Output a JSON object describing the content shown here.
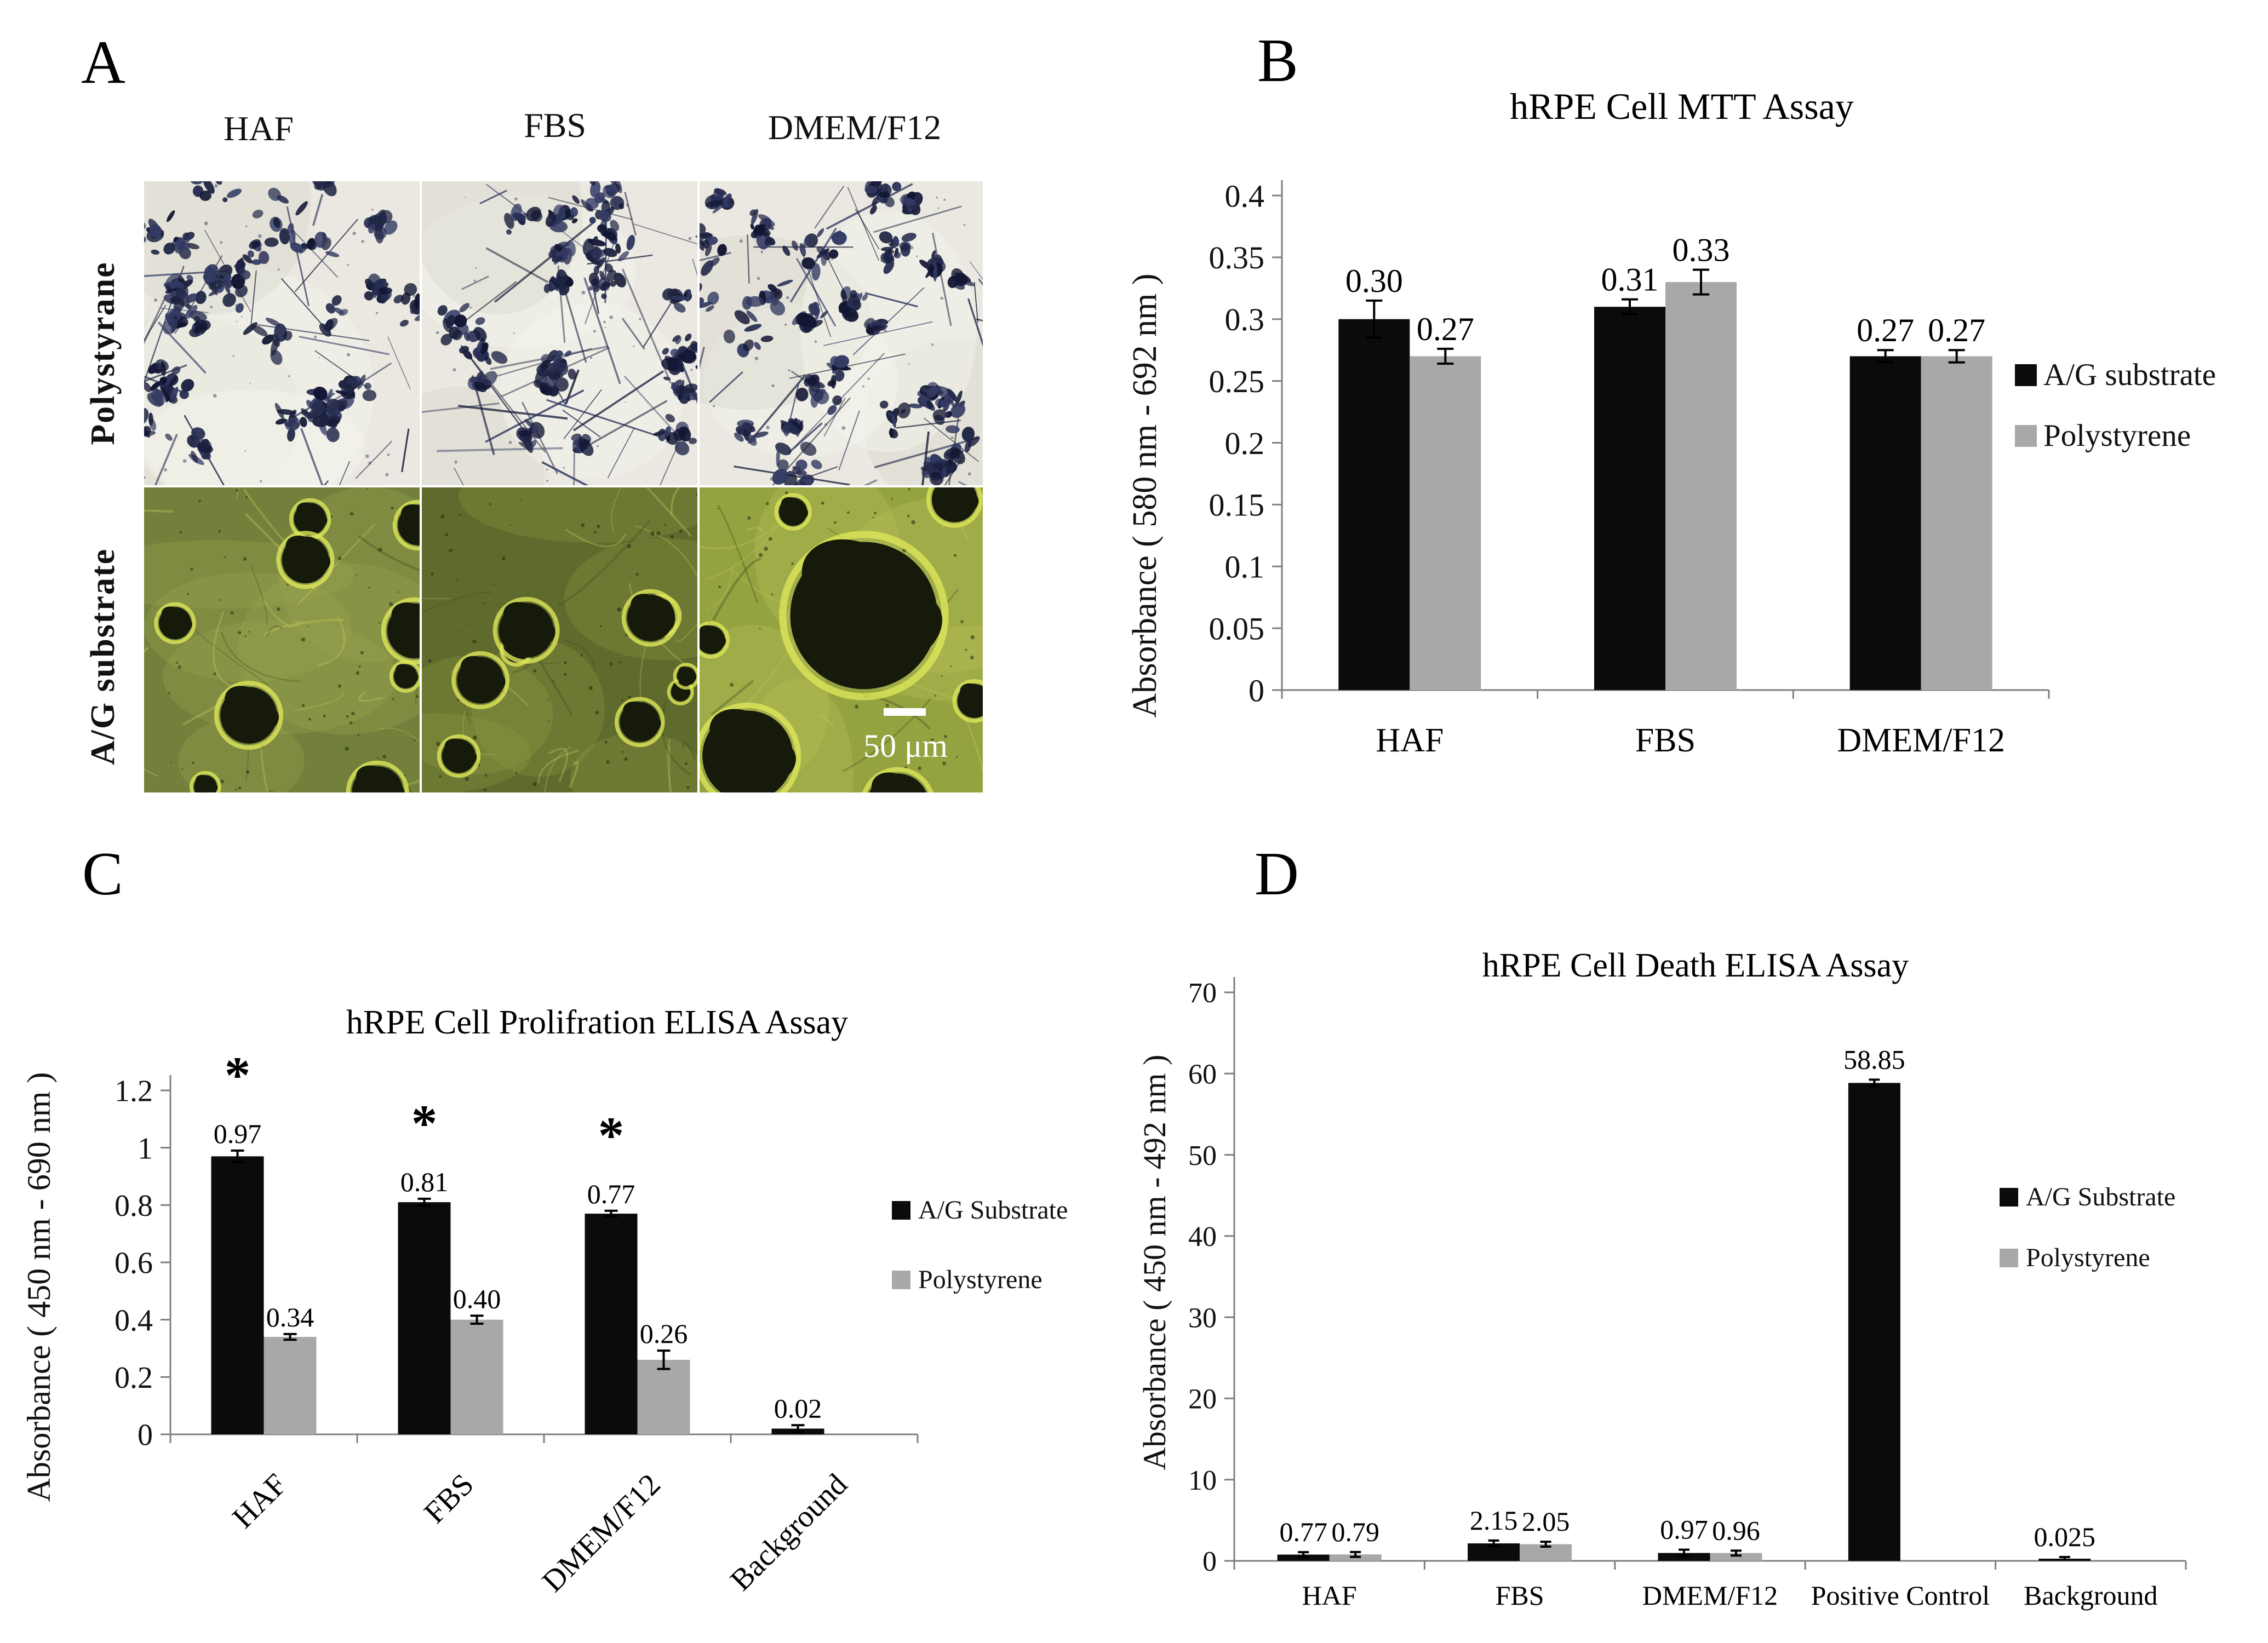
{
  "panel_a": {
    "label": "A",
    "column_labels": [
      "HAF",
      "FBS",
      "DMEM/F12"
    ],
    "row_labels": [
      "Polystyrane",
      "A/G substrate"
    ],
    "scale_bar": "50 μm"
  },
  "chart_data": [
    {
      "id": "mtt",
      "panel_label": "B",
      "type": "bar",
      "title": "hRPE Cell MTT Assay",
      "ylabel": "Absorbance ( 580 nm - 692 nm )",
      "xlabel": "",
      "categories": [
        "HAF",
        "FBS",
        "DMEM/F12"
      ],
      "ylim": [
        0,
        0.4
      ],
      "yticks": [
        "0",
        "0.05",
        "0.1",
        "0.15",
        "0.2",
        "0.25",
        "0.3",
        "0.35",
        "0.4"
      ],
      "grid": false,
      "legend_position": "right",
      "series": [
        {
          "name": "A/G substrate",
          "color": "#0b0b0b",
          "values": [
            0.3,
            0.31,
            0.27
          ],
          "value_labels": [
            "0.30",
            "0.31",
            "0.27"
          ],
          "errors": [
            0.015,
            0.006,
            0.005
          ]
        },
        {
          "name": "Polystyrene",
          "color": "#a8a8a8",
          "values": [
            0.27,
            0.33,
            0.27
          ],
          "value_labels": [
            "0.27",
            "0.33",
            "0.27"
          ],
          "errors": [
            0.006,
            0.01,
            0.005
          ]
        }
      ]
    },
    {
      "id": "prolif",
      "panel_label": "C",
      "type": "bar",
      "title": "hRPE Cell Prolifration ELISA  Assay",
      "ylabel": "Absorbance ( 450 nm -  690 nm )",
      "xlabel": "",
      "categories": [
        "HAF",
        "FBS",
        "DMEM/F12",
        "Background"
      ],
      "ylim": [
        0,
        1.2
      ],
      "yticks": [
        "0",
        "0.2",
        "0.4",
        "0.6",
        "0.8",
        "1",
        "1.2"
      ],
      "grid": false,
      "legend_position": "right",
      "series": [
        {
          "name": "A/G Substrate",
          "color": "#0b0b0b",
          "values": [
            0.97,
            0.81,
            0.77,
            0.02
          ],
          "value_labels": [
            "0.97",
            "0.81",
            "0.77",
            "0.02"
          ],
          "errors": [
            0.02,
            0.012,
            0.01,
            0.012
          ]
        },
        {
          "name": "Polystyrene",
          "color": "#a8a8a8",
          "values": [
            0.34,
            0.4,
            0.26,
            null
          ],
          "value_labels": [
            "0.34",
            "0.40",
            "0.26",
            ""
          ],
          "errors": [
            0.01,
            0.014,
            0.032,
            null
          ]
        }
      ],
      "significance": {
        "marker": "*",
        "series": 0,
        "categories": [
          0,
          1,
          2
        ]
      }
    },
    {
      "id": "death",
      "panel_label": "D",
      "type": "bar",
      "title": "hRPE Cell Death ELISA Assay",
      "ylabel": "Absorbance ( 450 nm - 492 nm )",
      "xlabel": "",
      "categories": [
        "HAF",
        "FBS",
        "DMEM/F12",
        "Positive Control",
        "Background"
      ],
      "ylim": [
        0,
        70
      ],
      "yticks": [
        "0",
        "10",
        "20",
        "30",
        "40",
        "50",
        "60",
        "70"
      ],
      "grid": false,
      "legend_position": "right",
      "series": [
        {
          "name": "A/G Substrate",
          "color": "#0b0b0b",
          "values": [
            0.77,
            2.15,
            0.97,
            58.85,
            0.025
          ],
          "value_labels": [
            "0.77",
            "2.15",
            "0.97",
            "58.85",
            "0.025"
          ],
          "errors": [
            0.3,
            0.35,
            0.4,
            0.4,
            0.05
          ]
        },
        {
          "name": "Polystyrene",
          "color": "#a8a8a8",
          "values": [
            0.79,
            2.05,
            0.96,
            null,
            null
          ],
          "value_labels": [
            "0.79",
            "2.05",
            "0.96",
            "",
            ""
          ],
          "errors": [
            0.3,
            0.3,
            0.3,
            null,
            null
          ]
        }
      ]
    }
  ]
}
